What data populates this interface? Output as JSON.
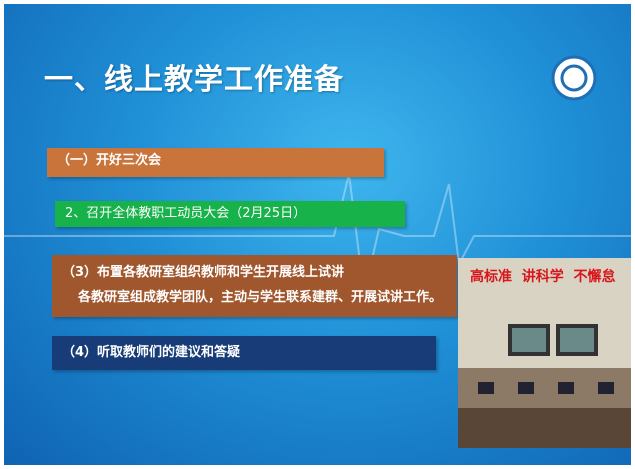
{
  "title": "一、线上教学工作准备",
  "items": [
    {
      "lines": [
        "（一）开好三次会"
      ]
    },
    {
      "lines": [
        "2、召开全体教职工动员大会（2月25日）"
      ]
    },
    {
      "lines": [
        "（3）布置各教研室组织教师和学生开展线上试讲",
        "各教研室组成教学团队，主动与学生联系建群、开展试讲工作。"
      ]
    },
    {
      "lines": [
        "（4）听取教师们的建议和答疑"
      ]
    }
  ],
  "photo": {
    "banner": "高标准  讲科学  不懈怠"
  }
}
